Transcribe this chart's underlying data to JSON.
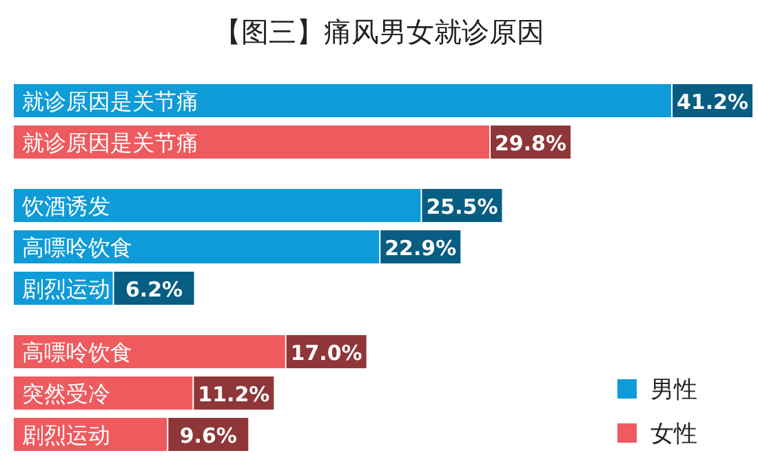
{
  "chart_data": {
    "type": "bar",
    "orientation": "horizontal",
    "title": "【图三】痛风男女就诊原因",
    "categories": [
      "就诊原因是关节痛",
      "就诊原因是关节痛",
      null,
      "饮酒诱发",
      "高嘌呤饮食",
      "剧烈运动",
      null,
      "高嘌呤饮食",
      "突然受冷",
      "剧烈运动"
    ],
    "series": [
      {
        "name": "男性",
        "color": "#0e9bd8",
        "values": [
          41.2,
          null,
          null,
          25.5,
          22.9,
          6.2,
          null,
          null,
          null,
          null
        ],
        "value_labels": [
          "41.2%",
          null,
          null,
          "25.5%",
          "22.9%",
          "6.2%",
          null,
          null,
          null,
          null
        ]
      },
      {
        "name": "女性",
        "color": "#ee5a5e",
        "values": [
          null,
          29.8,
          null,
          null,
          null,
          null,
          null,
          17.0,
          11.2,
          9.6
        ],
        "value_labels": [
          null,
          "29.8%",
          null,
          null,
          null,
          null,
          null,
          "17.0%",
          "11.2%",
          "9.6%"
        ]
      }
    ],
    "legend": "bottom right"
  }
}
